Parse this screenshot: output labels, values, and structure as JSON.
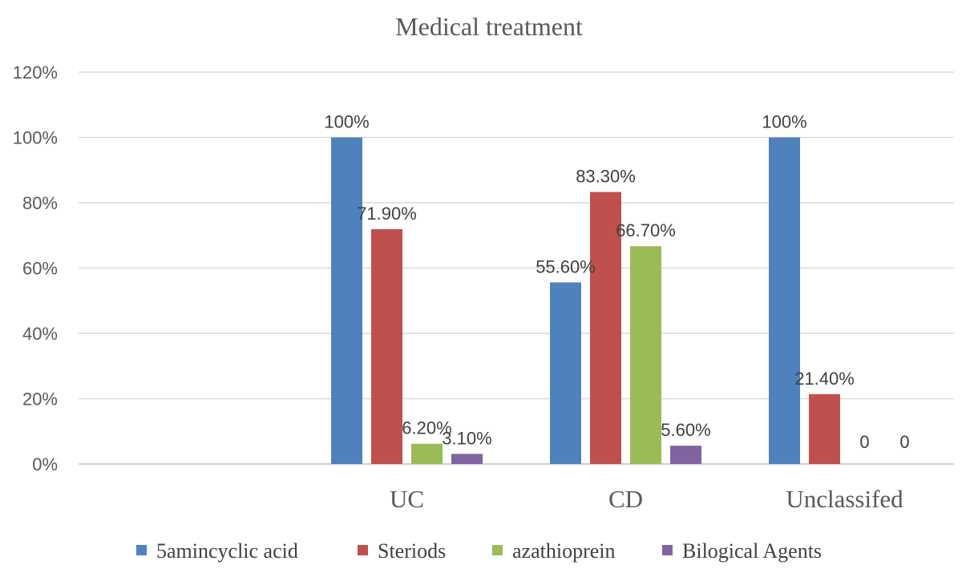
{
  "chart_data": {
    "type": "bar",
    "title": "Medical treatment",
    "xlabel": "",
    "ylabel": "",
    "categories": [
      "",
      "UC",
      "CD",
      "Unclassifed"
    ],
    "series": [
      {
        "name": "5amincyclic acid",
        "color": "#4F81BD",
        "values": [
          null,
          100,
          55.6,
          100
        ],
        "labels": [
          "",
          "100%",
          "55.60%",
          "100%"
        ]
      },
      {
        "name": "Steriods",
        "color": "#C0504D",
        "values": [
          null,
          71.9,
          83.3,
          21.4
        ],
        "labels": [
          "",
          "71.90%",
          "83.30%",
          "21.40%"
        ]
      },
      {
        "name": "azathioprein",
        "color": "#9BBB59",
        "values": [
          null,
          6.2,
          66.7,
          0
        ],
        "labels": [
          "",
          "6.20%",
          "66.70%",
          "0"
        ]
      },
      {
        "name": "Bilogical Agents",
        "color": "#8064A2",
        "values": [
          null,
          3.1,
          5.6,
          0
        ],
        "labels": [
          "",
          "3.10%",
          "5.60%",
          "0"
        ]
      }
    ],
    "yticks": [
      0,
      20,
      40,
      60,
      80,
      100,
      120
    ],
    "ytick_labels": [
      "0%",
      "20%",
      "40%",
      "60%",
      "80%",
      "100%",
      "120%"
    ],
    "ylim": [
      0,
      120
    ],
    "grid": true,
    "legend_position": "bottom"
  }
}
